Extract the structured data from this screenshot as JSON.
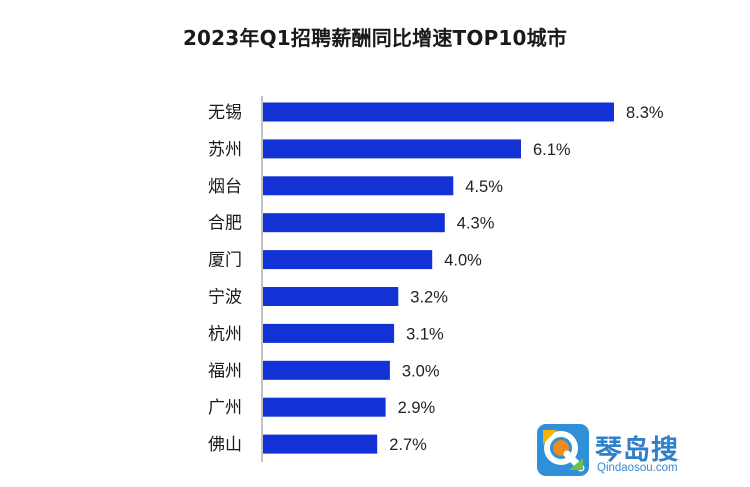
{
  "chart_data": {
    "type": "bar",
    "orientation": "horizontal",
    "title": "2023年Q1招聘薪酬同比增速TOP10城市",
    "categories": [
      "无锡",
      "苏州",
      "烟台",
      "合肥",
      "厦门",
      "宁波",
      "杭州",
      "福州",
      "广州",
      "佛山"
    ],
    "values": [
      8.3,
      6.1,
      4.5,
      4.3,
      4.0,
      3.2,
      3.1,
      3.0,
      2.9,
      2.7
    ],
    "value_labels": [
      "8.3%",
      "6.1%",
      "4.5%",
      "4.3%",
      "4.0%",
      "3.2%",
      "3.1%",
      "3.0%",
      "2.9%",
      "2.7%"
    ],
    "xlim": [
      0,
      8.3
    ],
    "grid": false,
    "legend": "none",
    "bar_color": "#1232d6",
    "axis_color": "#9a9a9a"
  },
  "watermark": {
    "name": "琴岛搜",
    "url": "Qindaosou.com"
  }
}
